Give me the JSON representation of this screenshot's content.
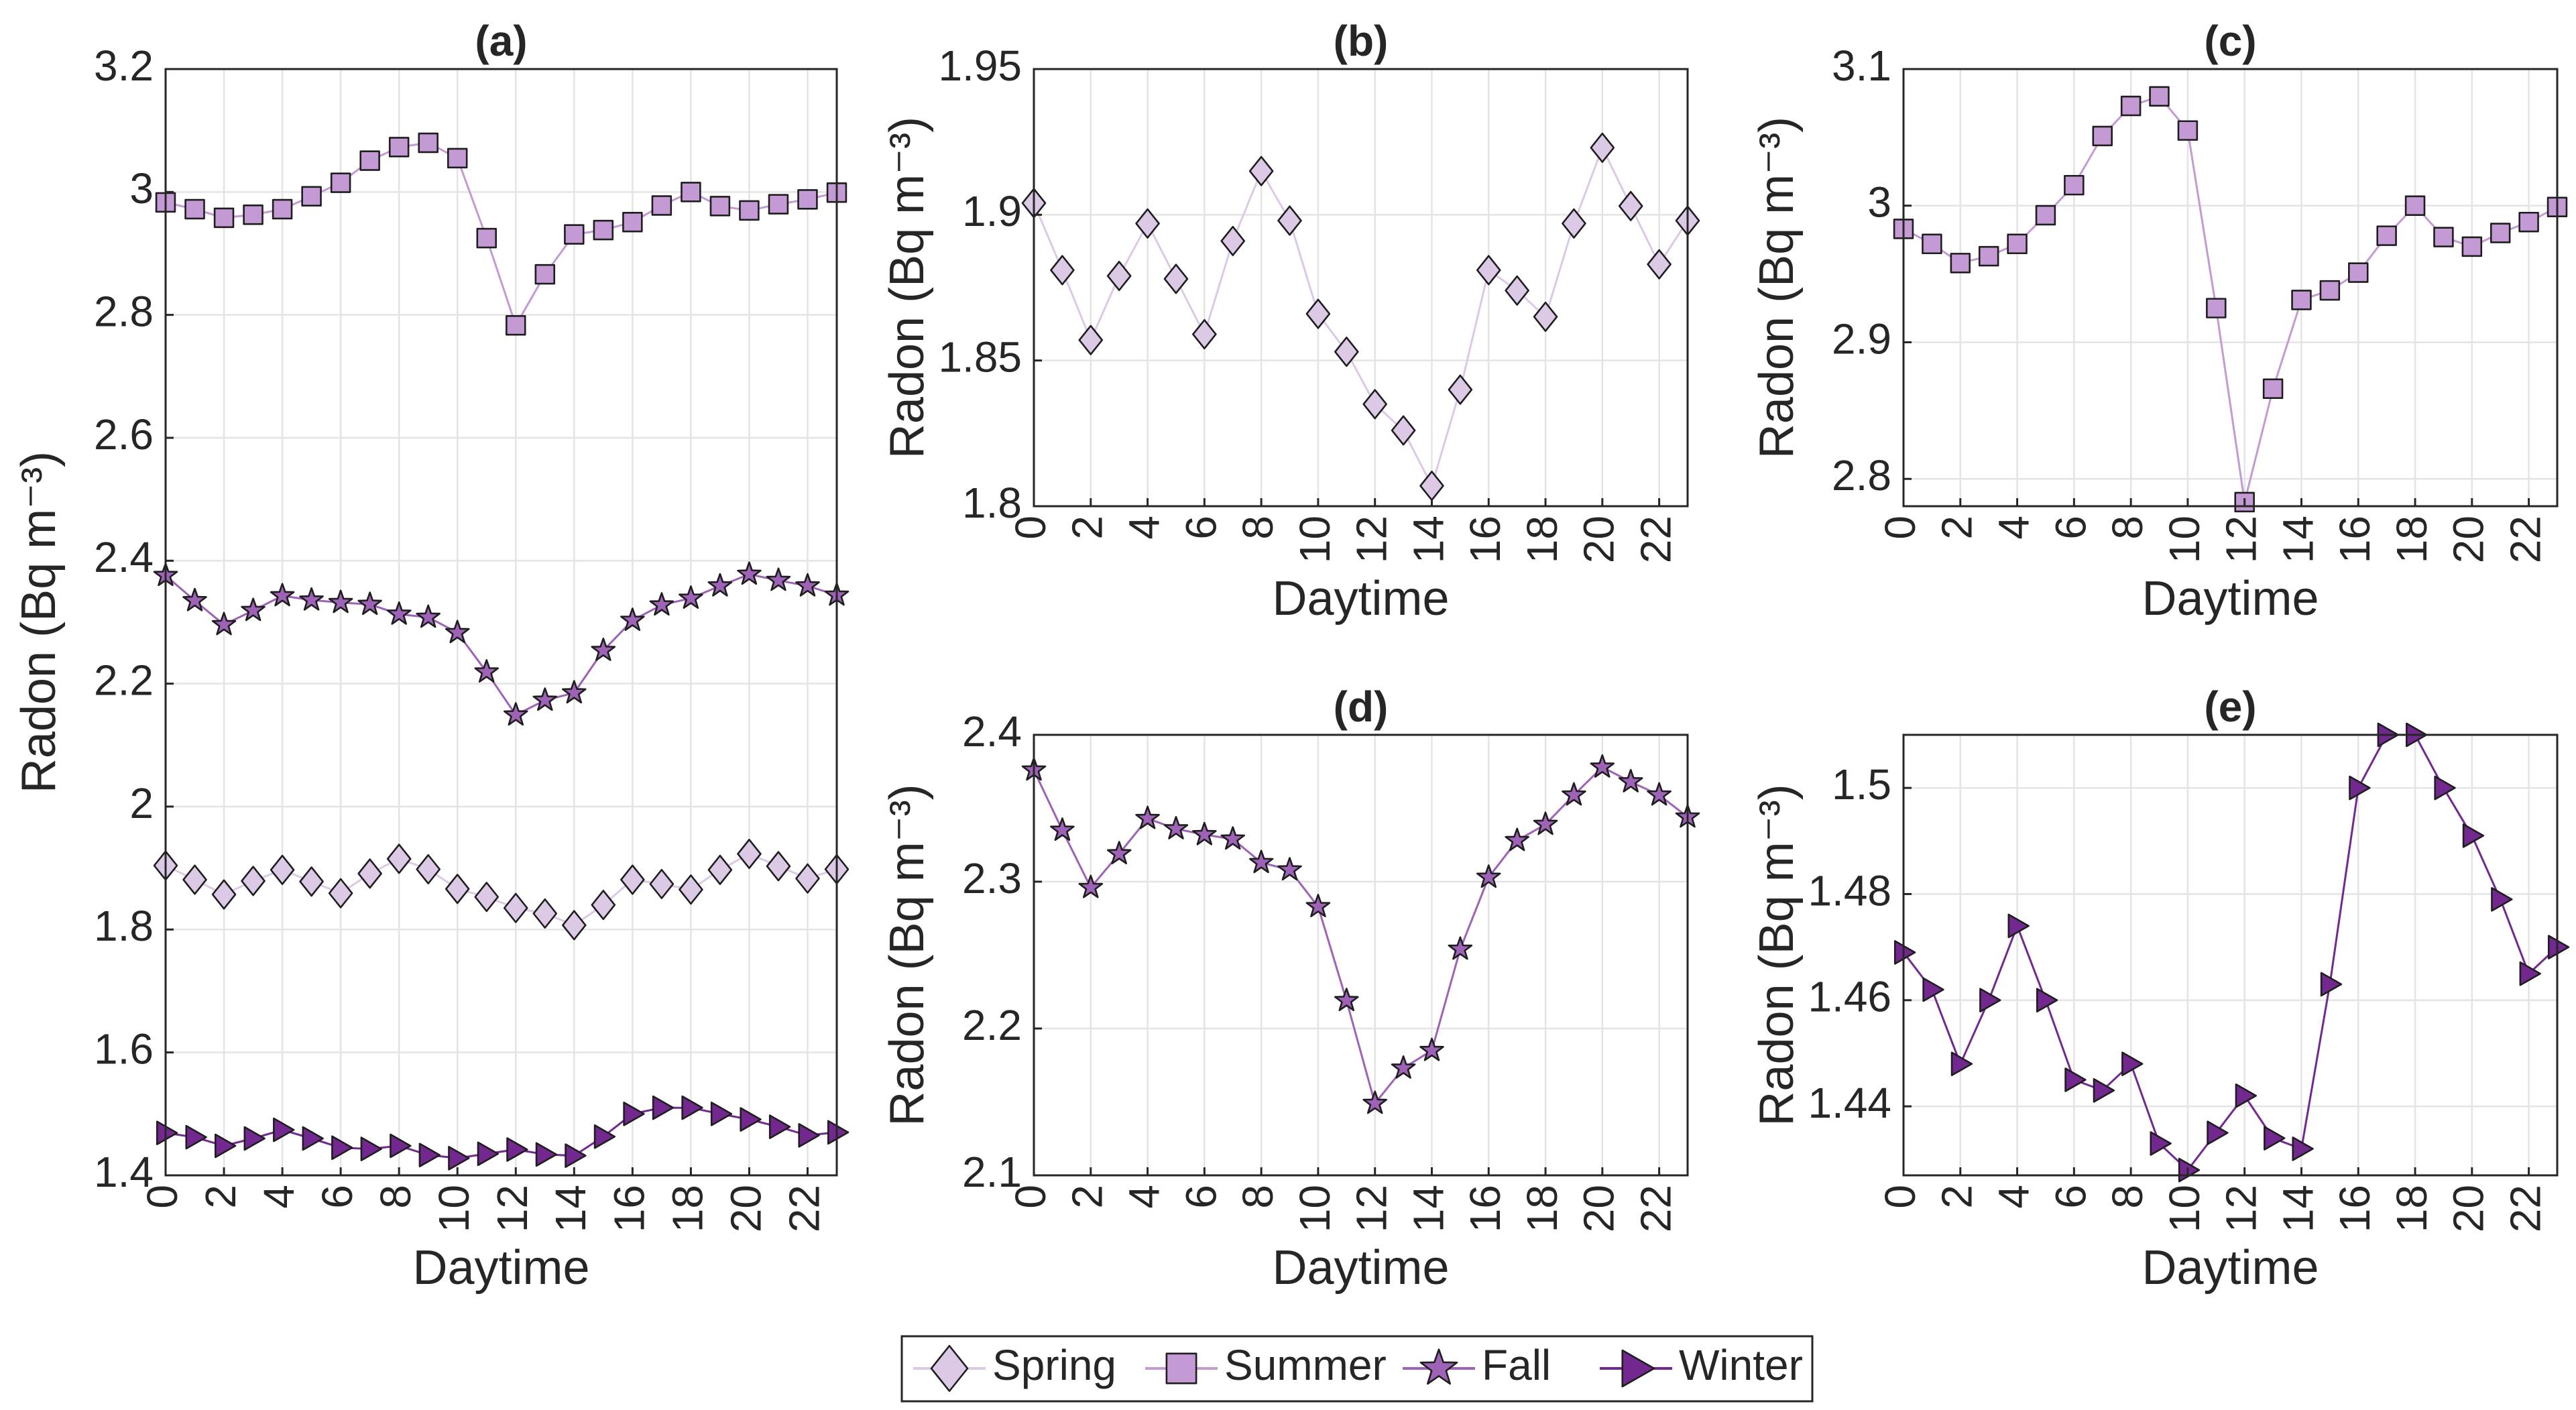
{
  "figure": {
    "legend": [
      {
        "name": "Spring",
        "marker": "diamond",
        "color": "#dcc9e6"
      },
      {
        "name": "Summer",
        "marker": "square",
        "color": "#c49ad4"
      },
      {
        "name": "Fall",
        "marker": "star",
        "color": "#9e62b7"
      },
      {
        "name": "Winter",
        "marker": "triangle-right",
        "color": "#73288f"
      }
    ]
  },
  "chart_data": [
    {
      "id": "a",
      "type": "line",
      "title": "(a)",
      "xlabel": "Daytime",
      "ylabel": "Radon (Bq m⁻³)",
      "xlim": [
        0,
        23
      ],
      "ylim": [
        1.4,
        3.2
      ],
      "xticks": [
        0,
        2,
        4,
        6,
        8,
        10,
        12,
        14,
        16,
        18,
        20,
        22
      ],
      "yticks": [
        1.4,
        1.6,
        1.8,
        2,
        2.2,
        2.4,
        2.6,
        2.8,
        3,
        3.2
      ],
      "ytick_labels": [
        "1.4",
        "1.6",
        "1.8",
        "2",
        "2.2",
        "2.4",
        "2.6",
        "2.8",
        "3",
        "3.2"
      ],
      "grid": true,
      "x": [
        0,
        1,
        2,
        3,
        4,
        5,
        6,
        7,
        8,
        9,
        10,
        11,
        12,
        13,
        14,
        15,
        16,
        17,
        18,
        19,
        20,
        21,
        22,
        23
      ],
      "series": [
        {
          "name": "Spring",
          "values": [
            1.904,
            1.881,
            1.857,
            1.879,
            1.897,
            1.878,
            1.859,
            1.891,
            1.915,
            1.898,
            1.866,
            1.853,
            1.835,
            1.826,
            1.807,
            1.84,
            1.881,
            1.874,
            1.865,
            1.897,
            1.923,
            1.903,
            1.883,
            1.898
          ]
        },
        {
          "name": "Summer",
          "values": [
            2.983,
            2.972,
            2.958,
            2.963,
            2.972,
            2.993,
            3.015,
            3.051,
            3.073,
            3.08,
            3.055,
            2.925,
            2.783,
            2.866,
            2.931,
            2.938,
            2.951,
            2.978,
            3.0,
            2.977,
            2.97,
            2.98,
            2.988,
            2.999
          ]
        },
        {
          "name": "Fall",
          "values": [
            2.376,
            2.335,
            2.296,
            2.319,
            2.343,
            2.336,
            2.332,
            2.329,
            2.313,
            2.308,
            2.283,
            2.219,
            2.149,
            2.173,
            2.185,
            2.254,
            2.303,
            2.328,
            2.339,
            2.359,
            2.378,
            2.368,
            2.359,
            2.344
          ]
        },
        {
          "name": "Winter",
          "values": [
            1.469,
            1.462,
            1.448,
            1.46,
            1.474,
            1.46,
            1.445,
            1.443,
            1.448,
            1.433,
            1.428,
            1.435,
            1.442,
            1.434,
            1.432,
            1.463,
            1.5,
            1.51,
            1.51,
            1.5,
            1.491,
            1.479,
            1.465,
            1.47
          ]
        }
      ]
    },
    {
      "id": "b",
      "type": "line",
      "title": "(b)",
      "xlabel": "Daytime",
      "ylabel": "Radon (Bq m⁻³)",
      "xlim": [
        0,
        23
      ],
      "ylim": [
        1.8,
        1.95
      ],
      "xticks": [
        0,
        2,
        4,
        6,
        8,
        10,
        12,
        14,
        16,
        18,
        20,
        22
      ],
      "yticks": [
        1.8,
        1.85,
        1.9,
        1.95
      ],
      "ytick_labels": [
        "1.8",
        "1.85",
        "1.9",
        "1.95"
      ],
      "grid": true,
      "x": [
        0,
        1,
        2,
        3,
        4,
        5,
        6,
        7,
        8,
        9,
        10,
        11,
        12,
        13,
        14,
        15,
        16,
        17,
        18,
        19,
        20,
        21,
        22,
        23
      ],
      "series": [
        {
          "name": "Spring",
          "values": [
            1.904,
            1.881,
            1.857,
            1.879,
            1.897,
            1.878,
            1.859,
            1.891,
            1.915,
            1.898,
            1.866,
            1.853,
            1.835,
            1.826,
            1.807,
            1.84,
            1.881,
            1.874,
            1.865,
            1.897,
            1.923,
            1.903,
            1.883,
            1.898
          ]
        }
      ]
    },
    {
      "id": "c",
      "type": "line",
      "title": "(c)",
      "xlabel": "Daytime",
      "ylabel": "Radon (Bq m⁻³)",
      "xlim": [
        0,
        23
      ],
      "ylim": [
        2.78,
        3.1
      ],
      "xticks": [
        0,
        2,
        4,
        6,
        8,
        10,
        12,
        14,
        16,
        18,
        20,
        22
      ],
      "yticks": [
        2.8,
        2.9,
        3.0,
        3.1
      ],
      "ytick_labels": [
        "2.8",
        "2.9",
        "3",
        "3.1"
      ],
      "grid": true,
      "x": [
        0,
        1,
        2,
        3,
        4,
        5,
        6,
        7,
        8,
        9,
        10,
        11,
        12,
        13,
        14,
        15,
        16,
        17,
        18,
        19,
        20,
        21,
        22,
        23
      ],
      "series": [
        {
          "name": "Summer",
          "values": [
            2.983,
            2.972,
            2.958,
            2.963,
            2.972,
            2.993,
            3.015,
            3.051,
            3.073,
            3.08,
            3.055,
            2.925,
            2.783,
            2.866,
            2.931,
            2.938,
            2.951,
            2.978,
            3.0,
            2.977,
            2.97,
            2.98,
            2.988,
            2.999
          ]
        }
      ]
    },
    {
      "id": "d",
      "type": "line",
      "title": "(d)",
      "xlabel": "Daytime",
      "ylabel": "Radon (Bq m⁻³)",
      "xlim": [
        0,
        23
      ],
      "ylim": [
        2.1,
        2.4
      ],
      "xticks": [
        0,
        2,
        4,
        6,
        8,
        10,
        12,
        14,
        16,
        18,
        20,
        22
      ],
      "yticks": [
        2.1,
        2.2,
        2.3,
        2.4
      ],
      "ytick_labels": [
        "2.1",
        "2.2",
        "2.3",
        "2.4"
      ],
      "grid": true,
      "x": [
        0,
        1,
        2,
        3,
        4,
        5,
        6,
        7,
        8,
        9,
        10,
        11,
        12,
        13,
        14,
        15,
        16,
        17,
        18,
        19,
        20,
        21,
        22,
        23
      ],
      "series": [
        {
          "name": "Fall",
          "values": [
            2.376,
            2.335,
            2.296,
            2.319,
            2.343,
            2.336,
            2.332,
            2.329,
            2.313,
            2.308,
            2.283,
            2.219,
            2.149,
            2.173,
            2.185,
            2.254,
            2.303,
            2.328,
            2.339,
            2.359,
            2.378,
            2.368,
            2.359,
            2.344
          ]
        }
      ]
    },
    {
      "id": "e",
      "type": "line",
      "title": "(e)",
      "xlabel": "Daytime",
      "ylabel": "Radon (Bq m⁻³)",
      "xlim": [
        0,
        23
      ],
      "ylim": [
        1.427,
        1.51
      ],
      "xticks": [
        0,
        2,
        4,
        6,
        8,
        10,
        12,
        14,
        16,
        18,
        20,
        22
      ],
      "yticks": [
        1.44,
        1.46,
        1.48,
        1.5
      ],
      "ytick_labels": [
        "1.44",
        "1.46",
        "1.48",
        "1.5"
      ],
      "grid": true,
      "x": [
        0,
        1,
        2,
        3,
        4,
        5,
        6,
        7,
        8,
        9,
        10,
        11,
        12,
        13,
        14,
        15,
        16,
        17,
        18,
        19,
        20,
        21,
        22,
        23
      ],
      "series": [
        {
          "name": "Winter",
          "values": [
            1.469,
            1.462,
            1.448,
            1.46,
            1.474,
            1.46,
            1.445,
            1.443,
            1.448,
            1.433,
            1.428,
            1.435,
            1.442,
            1.434,
            1.432,
            1.463,
            1.5,
            1.51,
            1.51,
            1.5,
            1.491,
            1.479,
            1.465,
            1.47
          ]
        }
      ]
    }
  ]
}
